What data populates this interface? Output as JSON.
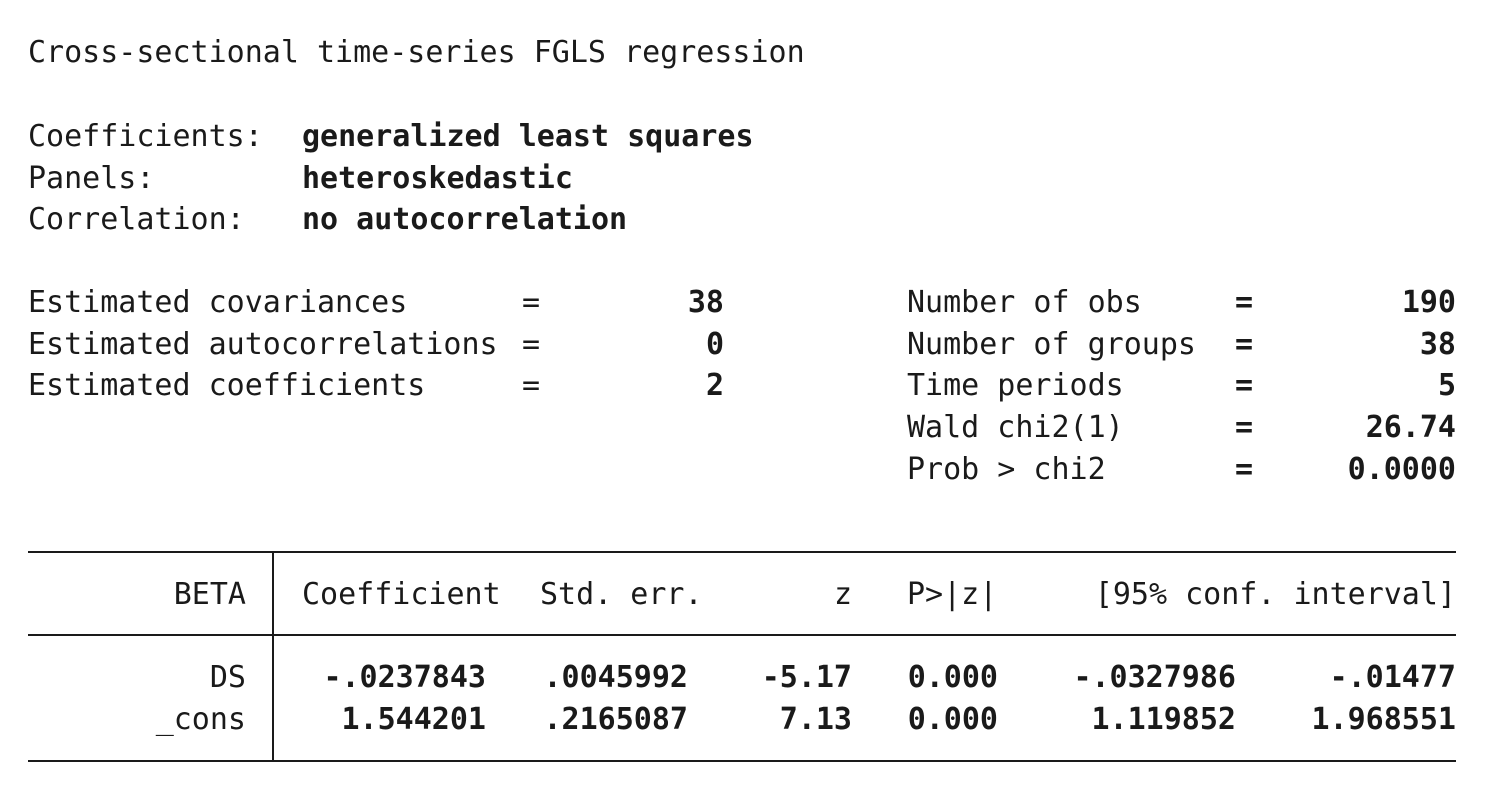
{
  "title": "Cross-sectional time-series FGLS regression",
  "model": {
    "coefficients_label": "Coefficients:",
    "coefficients_value": "generalized least squares",
    "panels_label": "Panels:",
    "panels_value": "heteroskedastic",
    "correlation_label": "Correlation:",
    "correlation_value": "no autocorrelation"
  },
  "estimates": {
    "cov_label": "Estimated covariances",
    "cov_value": "38",
    "autocorr_label": "Estimated autocorrelations",
    "autocorr_value": "0",
    "coef_label": "Estimated coefficients",
    "coef_value": "2",
    "equals": "="
  },
  "stats": {
    "nobs_label": "Number of obs",
    "nobs_value": "190",
    "ngroups_label": "Number of groups",
    "ngroups_value": "38",
    "periods_label": "Time periods",
    "periods_value": "5",
    "wald_label": "Wald chi2(1)",
    "wald_value": "26.74",
    "prob_label": "Prob > chi2",
    "prob_value": "0.0000",
    "equals": "="
  },
  "table": {
    "depvar": "BETA",
    "headers": {
      "coef": "Coefficient",
      "se": "Std. err.",
      "z": "z",
      "p": "P>|z|",
      "ci": "[95% conf. interval]"
    },
    "rows": [
      {
        "name": "DS",
        "coef": "-.0237843",
        "se": ".0045992",
        "z": "-5.17",
        "p": "0.000",
        "lo": "-.0327986",
        "hi": "-.01477"
      },
      {
        "name": "_cons",
        "coef": "1.544201",
        "se": ".2165087",
        "z": "7.13",
        "p": "0.000",
        "lo": "1.119852",
        "hi": "1.968551"
      }
    ]
  }
}
